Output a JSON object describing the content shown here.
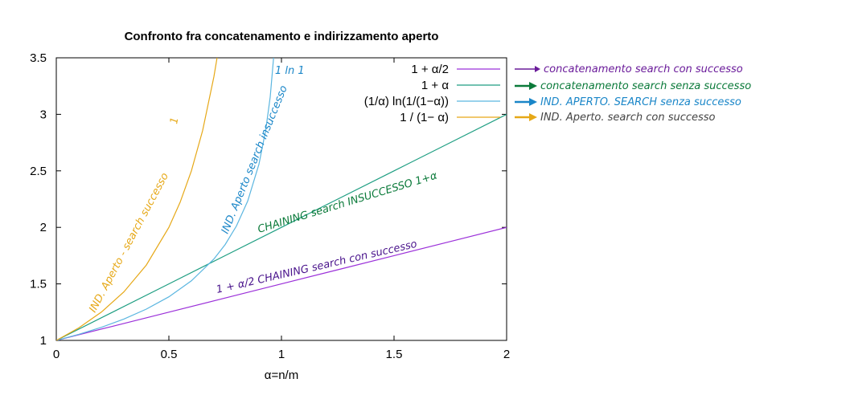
{
  "chart_data": {
    "type": "line",
    "title": "Confronto fra concatenamento e indirizzamento aperto",
    "xlabel": "α=n/m",
    "ylabel": "",
    "xlim": [
      0,
      2
    ],
    "ylim": [
      1,
      3.5
    ],
    "x_ticks": [
      "0",
      "0.5",
      "1",
      "1.5",
      "2"
    ],
    "y_ticks": [
      "1",
      "1.5",
      "2",
      "2.5",
      "3",
      "3.5"
    ],
    "grid": false,
    "legend_position": "top-right",
    "series": [
      {
        "name": "1 + α/2",
        "color": "#9b30d9",
        "x": [
          0,
          0.25,
          0.5,
          0.75,
          1,
          1.25,
          1.5,
          1.75,
          2
        ],
        "y": [
          1,
          1.125,
          1.25,
          1.375,
          1.5,
          1.625,
          1.75,
          1.875,
          2
        ]
      },
      {
        "name": "1 + α",
        "color": "#1e9e82",
        "x": [
          0,
          0.25,
          0.5,
          0.75,
          1,
          1.25,
          1.5,
          1.75,
          2
        ],
        "y": [
          1,
          1.25,
          1.5,
          1.75,
          2,
          2.25,
          2.5,
          2.75,
          3
        ]
      },
      {
        "name": "(1/α) ln(1/(1−α))",
        "color": "#5bb6e0",
        "x": [
          0.001,
          0.1,
          0.2,
          0.3,
          0.4,
          0.5,
          0.6,
          0.7,
          0.75,
          0.8,
          0.85,
          0.9,
          0.93,
          0.95,
          0.97
        ],
        "y": [
          1.0005,
          1.054,
          1.116,
          1.189,
          1.277,
          1.386,
          1.527,
          1.72,
          1.848,
          2.012,
          2.232,
          2.558,
          2.859,
          3.153,
          3.615
        ]
      },
      {
        "name": "1 / (1− α)",
        "color": "#e6a817",
        "x": [
          0,
          0.1,
          0.2,
          0.3,
          0.4,
          0.5,
          0.55,
          0.6,
          0.65,
          0.7,
          0.72
        ],
        "y": [
          1,
          1.111,
          1.25,
          1.429,
          1.667,
          2,
          2.222,
          2.5,
          2.857,
          3.333,
          3.571
        ]
      }
    ],
    "annotations": [
      {
        "text": "concatenamento search con successo",
        "color": "#6a1b9a"
      },
      {
        "text": "concatenamento search senza successo",
        "color": "#0b7a3a"
      },
      {
        "text": "IND. APERTO. SEARCH senza successo",
        "color": "#1a86c8"
      },
      {
        "text": "IND. Aperto. search con successo",
        "color": "#e6a817"
      },
      {
        "text": "1 + α/2 CHAINING search con successo",
        "color": "#4a148c"
      },
      {
        "text": "CHAINING search INSUCCESSO 1+α",
        "color": "#0b7a3a"
      },
      {
        "text": "IND. Aperto search insuccesso",
        "color": "#1a86c8"
      },
      {
        "text": "IND. Aperto - search successo",
        "color": "#e6a817"
      },
      {
        "text": "1 ln 1",
        "color": "#1a86c8"
      },
      {
        "text": "1",
        "color": "#e6a817"
      }
    ]
  }
}
